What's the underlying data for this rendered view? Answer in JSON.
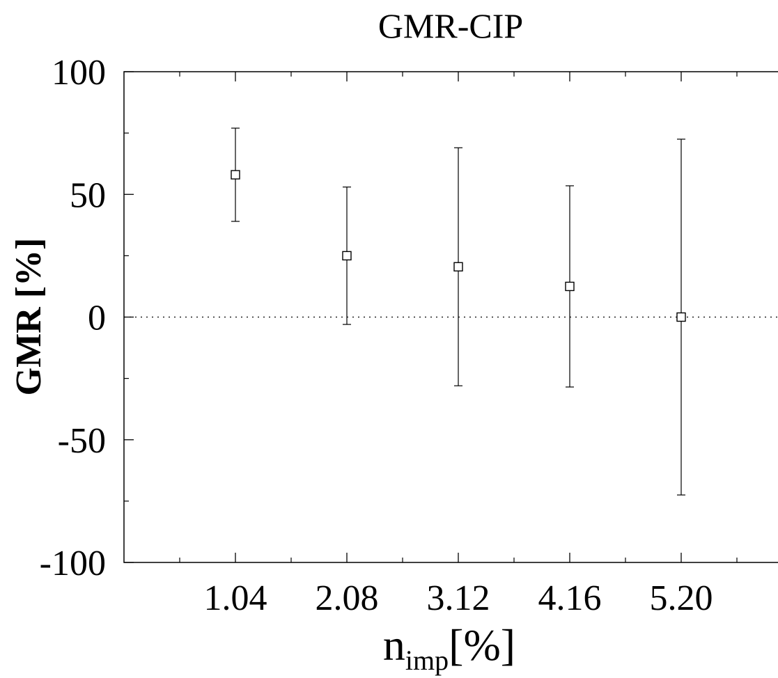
{
  "chart_data": {
    "type": "scatter",
    "title": "GMR-CIP",
    "xlabel": {
      "main": "n",
      "subscript": "imp",
      "suffix": "[%]"
    },
    "ylabel": "GMR [%]",
    "xlim": [
      0.0,
      6.24
    ],
    "ylim": [
      -100,
      100
    ],
    "grid": false,
    "reference_line": {
      "y": 0,
      "style": "dotted"
    },
    "x_tick_labels": [
      "1.04",
      "2.08",
      "3.12",
      "4.16",
      "5.20"
    ],
    "y_tick_labels": [
      "100",
      "50",
      "0",
      "-50",
      "-100"
    ],
    "x_ticks": [
      1.04,
      2.08,
      3.12,
      4.16,
      5.2
    ],
    "y_ticks": [
      100,
      50,
      0,
      -50,
      -100
    ],
    "series": [
      {
        "marker": "open-square",
        "points": [
          {
            "x": 1.04,
            "y": 58,
            "y_low": 39,
            "y_high": 77
          },
          {
            "x": 2.08,
            "y": 25,
            "y_low": -3,
            "y_high": 53
          },
          {
            "x": 3.12,
            "y": 20.5,
            "y_low": -28,
            "y_high": 69
          },
          {
            "x": 4.16,
            "y": 12.5,
            "y_low": -28.5,
            "y_high": 53.5
          },
          {
            "x": 5.2,
            "y": 0,
            "y_low": -72.5,
            "y_high": 72.5
          }
        ]
      }
    ]
  }
}
